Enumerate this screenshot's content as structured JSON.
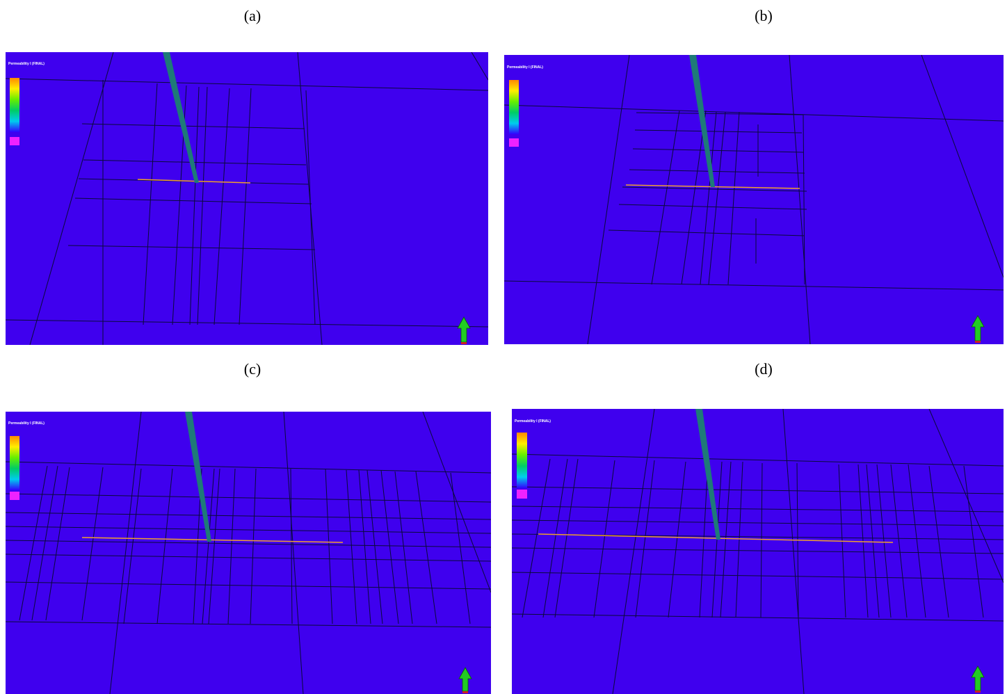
{
  "figure": {
    "panels": [
      {
        "id": "a",
        "caption": "(a)",
        "legend": {
          "title": "Permeability I (FINAL)",
          "subtitle": "",
          "ticks": [
            "",
            "",
            ""
          ]
        }
      },
      {
        "id": "b",
        "caption": "(b)",
        "legend": {
          "title": "Permeability I (FINAL)",
          "subtitle": "",
          "ticks": [
            "",
            "",
            ""
          ]
        }
      },
      {
        "id": "c",
        "caption": "(c)",
        "legend": {
          "title": "Permeability I (FINAL)",
          "subtitle": "",
          "ticks": [
            "",
            "",
            ""
          ]
        }
      },
      {
        "id": "d",
        "caption": "(d)",
        "legend": {
          "title": "Permeability I (FINAL)",
          "subtitle": "",
          "ticks": [
            "",
            "",
            ""
          ]
        }
      }
    ],
    "colors": {
      "background": "#3f00ee",
      "grid_line": "#0a0a3a",
      "well": "#1e7a78",
      "fracture": "#f0a030",
      "arrow": "#22cc22",
      "legend_gradient": [
        "#ff8800",
        "#ffee00",
        "#66ee00",
        "#00cc66",
        "#00ccee",
        "#3300ff",
        "#ff00ff"
      ]
    },
    "icons": [
      "north-arrow-icon"
    ]
  }
}
